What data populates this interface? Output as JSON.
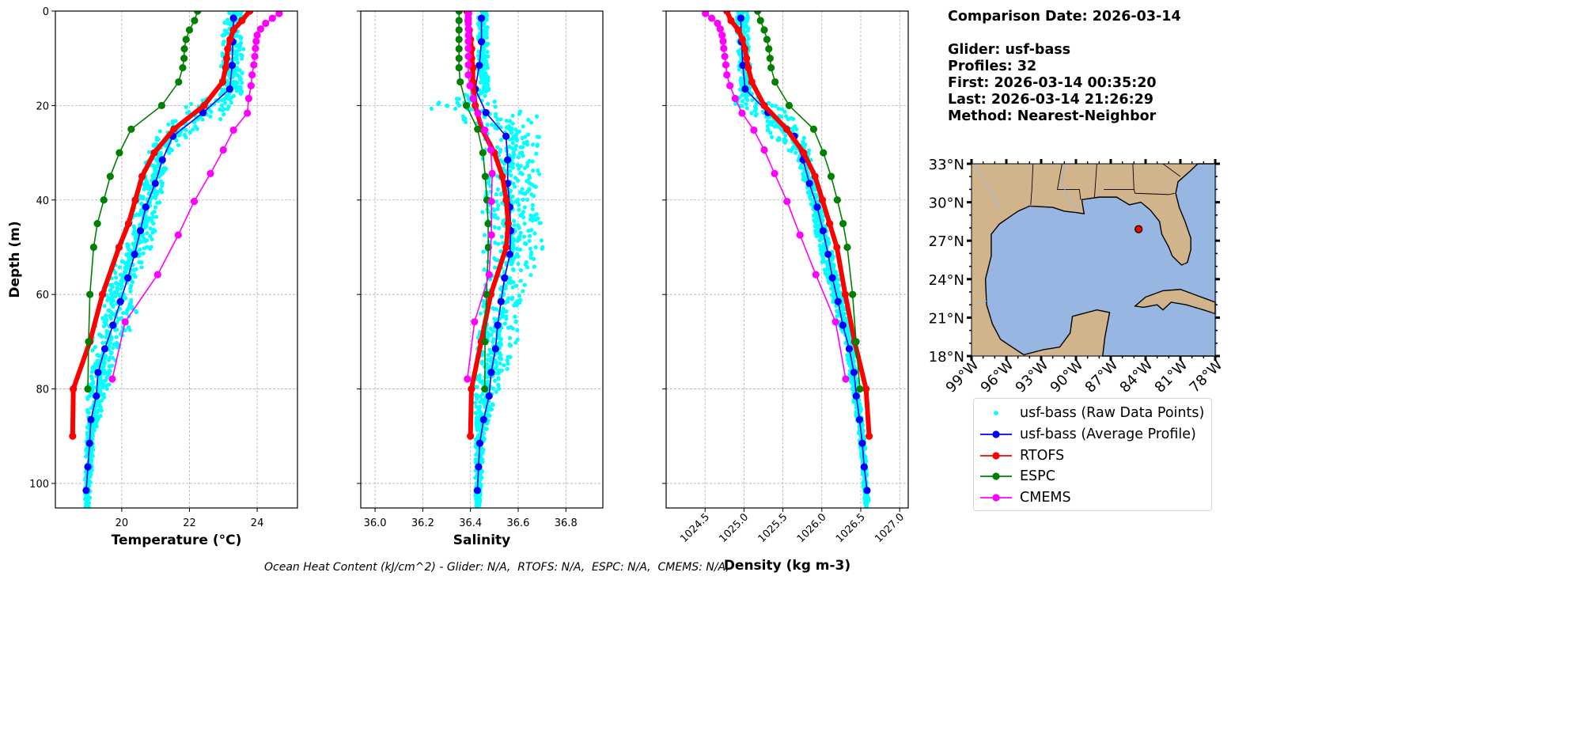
{
  "info": {
    "comparison_date": "Comparison Date: 2026-03-14",
    "glider": "Glider: usf-bass",
    "profiles": "Profiles: 32",
    "first": "First: 2026-03-14 00:35:20",
    "last": "Last: 2026-03-14 21:26:29",
    "method": "Method: Nearest-Neighbor"
  },
  "ohc_text": "Ocean Heat Content (kJ/cm^2) - Glider: N/A,  RTOFS: N/A,  ESPC: N/A,  CMEMS: N/A,",
  "legend": [
    {
      "label": "usf-bass (Raw Data Points)",
      "color": "#00ffff",
      "style": "dot"
    },
    {
      "label": "usf-bass (Average Profile)",
      "color": "#0000ff",
      "style": "line-marker"
    },
    {
      "label": "RTOFS",
      "color": "#ff0000",
      "style": "line-marker"
    },
    {
      "label": "ESPC",
      "color": "#008000",
      "style": "line-marker"
    },
    {
      "label": "CMEMS",
      "color": "#ff00ff",
      "style": "line-marker"
    }
  ],
  "map": {
    "lon_range": [
      -99,
      -78
    ],
    "lat_range": [
      18,
      33
    ],
    "lat_labels": [
      "33°N",
      "30°N",
      "27°N",
      "24°N",
      "21°N",
      "18°N"
    ],
    "lon_labels": [
      "99°W",
      "96°W",
      "93°W",
      "90°W",
      "87°W",
      "84°W",
      "81°W",
      "78°W"
    ],
    "land_color": "#d2b48c",
    "water_color": "#97b6e1",
    "glider_position": {
      "lon": -84.6,
      "lat": 27.9,
      "color": "#ff0000"
    }
  },
  "chart_data": [
    {
      "type": "line",
      "xlabel": "Temperature (°C)",
      "ylabel": "Depth (m)",
      "xlim": [
        18.04,
        25.19
      ],
      "ylim": [
        105.2,
        0
      ],
      "xticks": [
        20,
        22,
        24
      ],
      "xtick_labels": [
        "20",
        "22",
        "24"
      ],
      "yticks": [
        0,
        20,
        40,
        60,
        80,
        100
      ],
      "ytick_labels": [
        "0",
        "20",
        "40",
        "60",
        "80",
        "100"
      ],
      "grid": true,
      "raw_points": {
        "name": "usf-bass (Raw Data Points)",
        "depth": [
          0,
          17,
          20,
          22,
          25,
          30,
          40,
          50,
          60,
          65,
          70,
          80,
          90,
          104
        ],
        "min": [
          23.0,
          22.9,
          21.9,
          21.3,
          21.1,
          20.8,
          20.4,
          19.9,
          19.4,
          19.2,
          19.1,
          19.0,
          18.95,
          18.9
        ],
        "max": [
          23.6,
          23.6,
          23.5,
          23.4,
          22.3,
          21.4,
          21.2,
          20.9,
          20.2,
          20.6,
          20.0,
          19.6,
          19.2,
          19.05
        ]
      },
      "series": [
        {
          "name": "usf-bass (Average Profile)",
          "depth": [
            1.5,
            6.5,
            11.5,
            16.5,
            21.5,
            26.5,
            31.5,
            36.5,
            41.5,
            46.5,
            51.5,
            56.5,
            61.5,
            66.5,
            71.5,
            76.5,
            81.5,
            86.5,
            91.5,
            96.5,
            101.5
          ],
          "values": [
            23.3,
            23.28,
            23.26,
            23.19,
            22.4,
            21.51,
            21.2,
            20.99,
            20.71,
            20.55,
            20.38,
            20.18,
            19.96,
            19.74,
            19.5,
            19.3,
            19.25,
            19.09,
            19.05,
            19.0,
            18.95
          ]
        },
        {
          "name": "RTOFS",
          "depth": [
            0,
            2,
            4,
            6,
            8,
            10,
            12,
            15,
            20,
            25,
            30,
            35,
            40,
            45,
            50,
            60,
            70,
            80,
            90
          ],
          "values": [
            23.78,
            23.55,
            23.3,
            23.2,
            23.13,
            23.1,
            23.07,
            22.98,
            22.43,
            21.54,
            20.96,
            20.6,
            20.4,
            20.2,
            19.92,
            19.43,
            19.06,
            18.57,
            18.55
          ]
        },
        {
          "name": "ESPC",
          "depth": [
            0,
            2,
            4,
            6,
            8,
            10,
            12,
            15,
            20,
            25,
            30,
            35,
            40,
            45,
            50,
            60,
            70,
            80
          ],
          "values": [
            22.24,
            22.15,
            22.0,
            21.9,
            21.85,
            21.84,
            21.8,
            21.68,
            21.18,
            20.28,
            19.93,
            19.66,
            19.47,
            19.28,
            19.17,
            19.06,
            19.02,
            19.0
          ]
        },
        {
          "name": "CMEMS",
          "depth": [
            0.5,
            1.5,
            2.6,
            3.8,
            5.1,
            6.4,
            7.9,
            9.6,
            11.4,
            13.5,
            15.8,
            18.5,
            21.6,
            25.2,
            29.4,
            34.4,
            40.3,
            47.4,
            55.8,
            65.8,
            77.9
          ],
          "values": [
            24.65,
            24.45,
            24.25,
            24.1,
            24.0,
            23.97,
            23.95,
            23.93,
            23.9,
            23.85,
            23.82,
            23.75,
            23.71,
            23.3,
            23.0,
            22.62,
            22.14,
            21.67,
            21.06,
            20.1,
            19.72
          ]
        }
      ]
    },
    {
      "type": "line",
      "xlabel": "Salinity",
      "ylabel": "",
      "xlim": [
        35.94,
        36.955
      ],
      "ylim": [
        105.2,
        0
      ],
      "xticks": [
        36.0,
        36.2,
        36.4,
        36.6,
        36.8
      ],
      "xtick_labels": [
        "36.0",
        "36.2",
        "36.4",
        "36.6",
        "36.8"
      ],
      "yticks": [
        0,
        20,
        40,
        60,
        80,
        100
      ],
      "grid": true,
      "raw_points": {
        "name": "usf-bass (Raw Data Points)",
        "depth": [
          0,
          17,
          20,
          22,
          25,
          30,
          40,
          50,
          60,
          65,
          70,
          80,
          90,
          104
        ],
        "min": [
          36.43,
          36.43,
          36.2,
          36.3,
          36.45,
          36.45,
          36.45,
          36.45,
          36.45,
          36.44,
          36.43,
          36.42,
          36.42,
          36.42
        ],
        "max": [
          36.47,
          36.48,
          36.55,
          36.7,
          36.7,
          36.7,
          36.68,
          36.71,
          36.62,
          36.6,
          36.6,
          36.52,
          36.46,
          36.44
        ]
      },
      "series": [
        {
          "name": "usf-bass (Average Profile)",
          "depth": [
            1.5,
            6.5,
            11.5,
            16.5,
            21.5,
            26.5,
            31.5,
            36.5,
            41.5,
            46.5,
            51.5,
            56.5,
            61.5,
            66.5,
            71.5,
            76.5,
            81.5,
            86.5,
            91.5,
            96.5,
            101.5
          ],
          "values": [
            36.446,
            36.446,
            36.437,
            36.42,
            36.465,
            36.549,
            36.556,
            36.556,
            36.565,
            36.569,
            36.565,
            36.543,
            36.528,
            36.514,
            36.505,
            36.487,
            36.478,
            36.455,
            36.439,
            36.434,
            36.429
          ]
        },
        {
          "name": "RTOFS",
          "depth": [
            0,
            2,
            4,
            6,
            8,
            10,
            12,
            15,
            20,
            25,
            30,
            35,
            40,
            45,
            50,
            60,
            70,
            80,
            90
          ],
          "values": [
            36.385,
            36.39,
            36.395,
            36.4,
            36.405,
            36.405,
            36.41,
            36.41,
            36.42,
            36.448,
            36.5,
            36.534,
            36.55,
            36.558,
            36.55,
            36.485,
            36.445,
            36.404,
            36.4
          ]
        },
        {
          "name": "ESPC",
          "depth": [
            0,
            2,
            4,
            6,
            8,
            10,
            12,
            15,
            20,
            25,
            30,
            35,
            40,
            45,
            50,
            60,
            70,
            80
          ],
          "values": [
            36.352,
            36.352,
            36.352,
            36.352,
            36.352,
            36.352,
            36.352,
            36.357,
            36.383,
            36.43,
            36.452,
            36.462,
            36.469,
            36.474,
            36.475,
            36.467,
            36.461,
            36.46
          ]
        },
        {
          "name": "CMEMS",
          "depth": [
            0.5,
            1.5,
            2.6,
            3.8,
            5.1,
            6.4,
            7.9,
            9.6,
            11.4,
            13.5,
            15.8,
            18.5,
            21.6,
            25.2,
            29.4,
            34.4,
            40.3,
            47.4,
            55.8,
            65.8,
            77.9
          ],
          "values": [
            36.392,
            36.391,
            36.391,
            36.391,
            36.391,
            36.391,
            36.391,
            36.391,
            36.391,
            36.391,
            36.398,
            36.411,
            36.431,
            36.46,
            36.485,
            36.491,
            36.488,
            36.488,
            36.478,
            36.417,
            36.387
          ]
        }
      ]
    },
    {
      "type": "line",
      "xlabel": "Density (kg m-3)",
      "ylabel": "",
      "xlim": [
        1024.0,
        1027.11
      ],
      "ylim": [
        105.2,
        0
      ],
      "xticks": [
        1024.5,
        1025.0,
        1025.5,
        1026.0,
        1026.5,
        1027.0
      ],
      "xtick_labels": [
        "1024.5",
        "1025.0",
        "1025.5",
        "1026.0",
        "1026.5",
        "1027.0"
      ],
      "yticks": [
        0,
        20,
        40,
        60,
        80,
        100
      ],
      "grid": true,
      "raw_points": {
        "name": "usf-bass (Raw Data Points)",
        "depth": [
          0,
          17,
          20,
          22,
          25,
          30,
          40,
          50,
          60,
          65,
          70,
          80,
          90,
          104
        ],
        "min": [
          1024.9,
          1024.95,
          1024.85,
          1025.1,
          1025.2,
          1025.6,
          1025.85,
          1025.95,
          1026.1,
          1026.2,
          1026.3,
          1026.38,
          1026.48,
          1026.55
        ],
        "max": [
          1025.05,
          1025.1,
          1025.45,
          1025.6,
          1025.75,
          1025.85,
          1026.0,
          1026.12,
          1026.28,
          1026.35,
          1026.42,
          1026.48,
          1026.55,
          1026.6
        ]
      },
      "series": [
        {
          "name": "usf-bass (Average Profile)",
          "depth": [
            1.5,
            6.5,
            11.5,
            16.5,
            21.5,
            26.5,
            31.5,
            36.5,
            41.5,
            46.5,
            51.5,
            56.5,
            61.5,
            66.5,
            71.5,
            76.5,
            81.5,
            86.5,
            91.5,
            96.5,
            101.5
          ],
          "values": [
            1024.959,
            1024.967,
            1024.985,
            1025.015,
            1025.308,
            1025.647,
            1025.759,
            1025.841,
            1025.94,
            1026.015,
            1026.081,
            1026.136,
            1026.208,
            1026.27,
            1026.352,
            1026.413,
            1026.443,
            1026.485,
            1026.52,
            1026.544,
            1026.581
          ]
        },
        {
          "name": "RTOFS",
          "depth": [
            0,
            2,
            4,
            6,
            8,
            10,
            12,
            15,
            20,
            25,
            30,
            35,
            40,
            45,
            50,
            60,
            70,
            80,
            90
          ],
          "values": [
            1024.78,
            1024.833,
            1024.927,
            1024.98,
            1025.012,
            1025.033,
            1025.055,
            1025.1,
            1025.26,
            1025.548,
            1025.767,
            1025.913,
            1026.007,
            1026.1,
            1026.193,
            1026.301,
            1026.421,
            1026.568,
            1026.608
          ]
        },
        {
          "name": "ESPC",
          "depth": [
            0,
            2,
            4,
            6,
            8,
            10,
            12,
            15,
            20,
            25,
            30,
            35,
            40,
            45,
            50,
            60,
            70,
            80
          ],
          "values": [
            1025.175,
            1025.212,
            1025.26,
            1025.295,
            1025.319,
            1025.335,
            1025.348,
            1025.399,
            1025.58,
            1025.895,
            1026.02,
            1026.119,
            1026.199,
            1026.273,
            1026.327,
            1026.395,
            1026.44,
            1026.488
          ]
        },
        {
          "name": "CMEMS",
          "depth": [
            0.5,
            1.5,
            2.6,
            3.8,
            5.1,
            6.4,
            7.9,
            9.6,
            11.4,
            13.5,
            15.8,
            18.5,
            21.6,
            25.2,
            29.4,
            34.4,
            40.3,
            47.4,
            55.8,
            65.8,
            77.9
          ],
          "values": [
            1024.505,
            1024.585,
            1024.66,
            1024.695,
            1024.719,
            1024.732,
            1024.74,
            1024.753,
            1024.767,
            1024.78,
            1024.82,
            1024.887,
            1024.975,
            1025.127,
            1025.26,
            1025.393,
            1025.553,
            1025.719,
            1025.923,
            1026.176,
            1026.307
          ]
        }
      ]
    }
  ]
}
